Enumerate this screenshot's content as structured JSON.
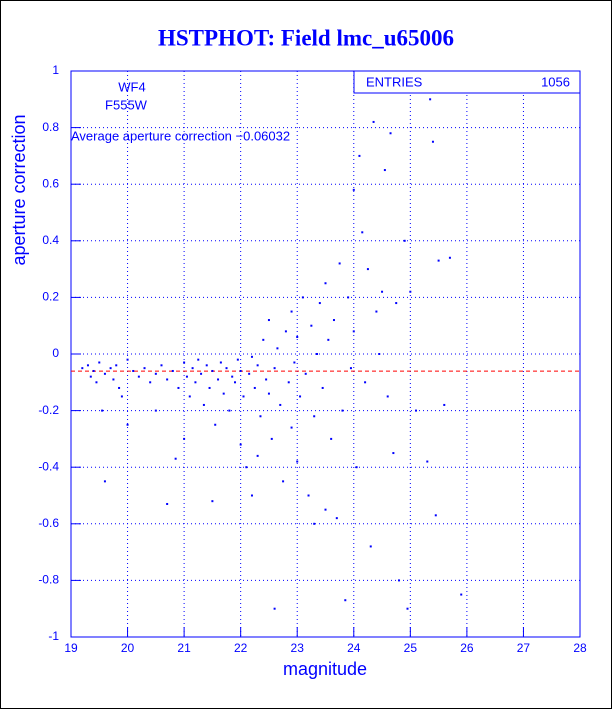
{
  "chart_data": {
    "type": "scatter",
    "title": "HSTPHOT: Field lmc_u65006",
    "x_label": "magnitude",
    "y_label": "aperture correction",
    "xlim": [
      19,
      28
    ],
    "xticks": [
      19,
      20,
      21,
      22,
      23,
      24,
      25,
      26,
      27,
      28
    ],
    "ylim": [
      -1,
      1
    ],
    "yticks": [
      -1,
      -0.8,
      -0.6,
      -0.4,
      -0.2,
      0,
      0.2,
      0.4,
      0.6,
      0.8,
      1
    ],
    "grid": true,
    "color": "#0000ff",
    "annotations": [
      "WF4",
      "F555W",
      "Average aperture correction −0.06032"
    ],
    "stats": {
      "label": "ENTRIES",
      "value": 1056
    },
    "reference_line": {
      "value": -0.06032,
      "color": "#ff0000"
    },
    "x": [
      19.2,
      19.3,
      19.35,
      19.4,
      19.45,
      19.5,
      19.55,
      19.6,
      19.7,
      19.75,
      19.8,
      19.6,
      19.85,
      19.9,
      20.0,
      20.0,
      20.1,
      20.2,
      20.3,
      20.4,
      20.5,
      20.5,
      20.6,
      20.7,
      20.7,
      20.8,
      20.85,
      20.9,
      21.0,
      21.0,
      21.05,
      21.1,
      21.15,
      21.2,
      21.25,
      21.3,
      21.35,
      21.4,
      21.45,
      21.5,
      21.5,
      21.55,
      21.6,
      21.65,
      21.7,
      21.75,
      21.8,
      21.85,
      21.9,
      21.95,
      22.0,
      22.0,
      22.05,
      22.1,
      22.15,
      22.2,
      22.2,
      22.25,
      22.3,
      22.3,
      22.35,
      22.4,
      22.45,
      22.5,
      22.5,
      22.55,
      22.6,
      22.6,
      22.65,
      22.7,
      22.75,
      22.8,
      22.85,
      22.9,
      22.9,
      22.95,
      23.0,
      23.0,
      23.05,
      23.1,
      23.15,
      23.2,
      23.25,
      23.3,
      23.3,
      23.35,
      23.4,
      23.45,
      23.5,
      23.5,
      23.55,
      23.6,
      23.65,
      23.7,
      23.75,
      23.8,
      23.85,
      23.9,
      23.95,
      24.0,
      24.0,
      24.05,
      24.1,
      24.15,
      24.2,
      24.25,
      24.3,
      24.35,
      24.4,
      24.45,
      24.5,
      24.55,
      24.6,
      24.65,
      24.7,
      24.75,
      24.8,
      24.9,
      24.95,
      25.0,
      25.1,
      25.3,
      25.35,
      25.4,
      25.45,
      25.5,
      25.6,
      25.7,
      25.9
    ],
    "values": [
      -0.05,
      -0.04,
      -0.08,
      -0.06,
      -0.1,
      -0.03,
      -0.2,
      -0.07,
      -0.05,
      -0.09,
      -0.04,
      -0.45,
      -0.12,
      -0.15,
      -0.02,
      -0.25,
      -0.06,
      -0.08,
      -0.05,
      -0.1,
      -0.07,
      -0.2,
      -0.04,
      -0.09,
      -0.53,
      -0.06,
      -0.37,
      -0.12,
      -0.03,
      -0.3,
      -0.08,
      -0.15,
      -0.05,
      -0.1,
      -0.02,
      -0.07,
      -0.18,
      -0.04,
      -0.12,
      -0.06,
      -0.52,
      -0.25,
      -0.09,
      -0.03,
      -0.14,
      -0.05,
      -0.2,
      -0.08,
      -0.1,
      -0.02,
      -0.06,
      -0.32,
      -0.15,
      -0.4,
      -0.07,
      -0.01,
      -0.5,
      -0.12,
      -0.04,
      -0.36,
      -0.22,
      0.05,
      -0.09,
      -0.14,
      0.12,
      -0.3,
      -0.05,
      -0.9,
      0.02,
      -0.18,
      -0.45,
      0.08,
      -0.1,
      -0.26,
      0.15,
      -0.03,
      -0.38,
      0.06,
      -0.15,
      0.2,
      -0.07,
      -0.5,
      0.1,
      -0.22,
      -0.6,
      0.0,
      0.18,
      -0.12,
      -0.55,
      0.25,
      0.05,
      -0.3,
      0.12,
      -0.58,
      0.32,
      -0.2,
      -0.87,
      0.2,
      -0.05,
      0.58,
      0.08,
      -0.4,
      0.7,
      0.43,
      -0.1,
      0.3,
      -0.68,
      0.82,
      0.15,
      0.0,
      0.22,
      0.65,
      -0.15,
      0.78,
      -0.35,
      0.18,
      -0.8,
      0.4,
      -0.9,
      0.22,
      -0.2,
      -0.38,
      0.9,
      0.75,
      -0.57,
      0.33,
      -0.18,
      0.34,
      -0.85
    ]
  }
}
